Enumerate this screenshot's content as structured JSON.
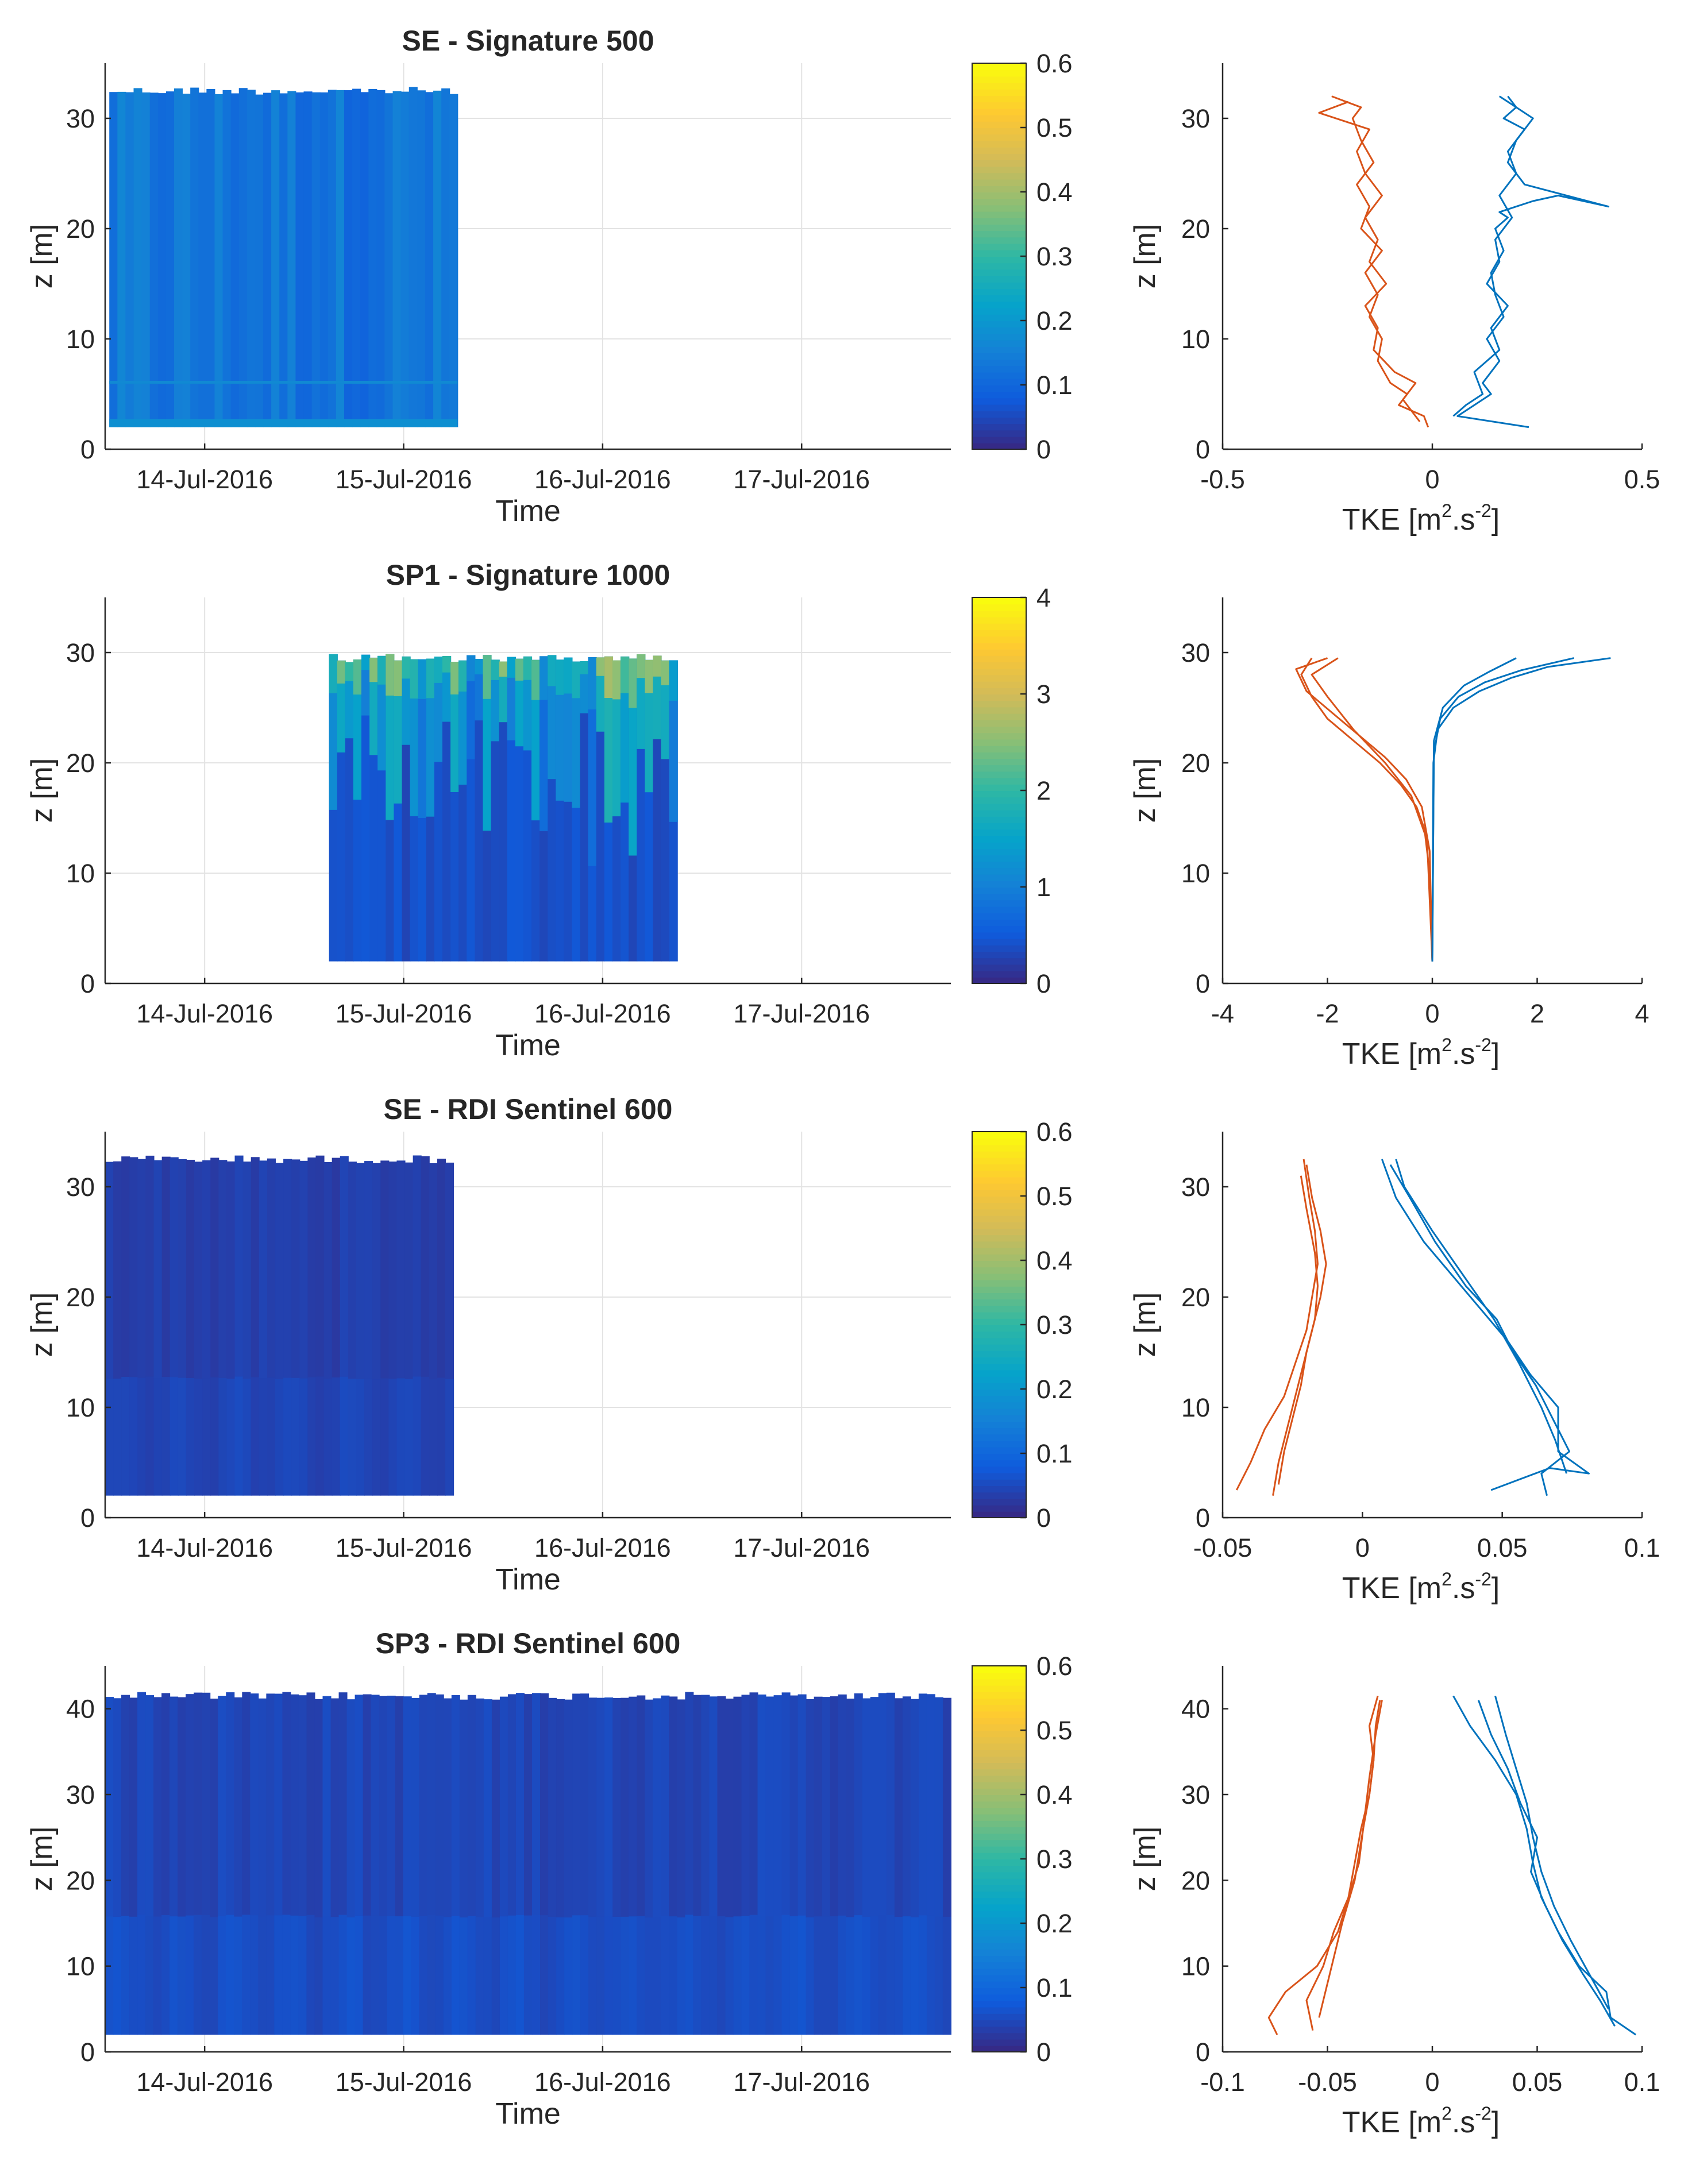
{
  "colors": {
    "orange_profile": "#D95319",
    "blue_profile": "#0072BD",
    "parula": [
      "#352A87",
      "#0F5CDD",
      "#1481D6",
      "#06A4CA",
      "#2EB7A4",
      "#87BF77",
      "#D1BB59",
      "#FEC832",
      "#F9FB0E"
    ]
  },
  "time_ticks": [
    "14-Jul-2016",
    "15-Jul-2016",
    "16-Jul-2016",
    "17-Jul-2016"
  ],
  "time_label": "Time",
  "z_label": "z [m]",
  "tke_label": {
    "main": "TKE [m",
    "sup1": "2",
    "mid": ".s",
    "sup2": "-2",
    "end": "]"
  },
  "chart_data": [
    {
      "type": "heatmap",
      "title": "SE - Signature 500",
      "xlabel": "Time",
      "ylabel": "z [m]",
      "xlim": [
        "13-Jul-2016 12:00",
        "17-Jul-2016 18:00"
      ],
      "x_ticks": [
        "14-Jul-2016",
        "15-Jul-2016",
        "16-Jul-2016",
        "17-Jul-2016"
      ],
      "ylim": [
        0,
        35
      ],
      "y_ticks": [
        0,
        10,
        20,
        30
      ],
      "data_extent": {
        "start": "13-Jul-2016 12:30",
        "end": "15-Jul-2016 06:30",
        "z_bottom": 2,
        "z_top": 32.5
      },
      "typical_value": 0.12,
      "colorbar": {
        "min": 0,
        "max": 0.6,
        "ticks": [
          0,
          0.1,
          0.2,
          0.3,
          0.4,
          0.5,
          0.6
        ]
      },
      "grid": true
    },
    {
      "type": "line",
      "xlabel": "TKE [m2.s-2]",
      "ylabel": "z [m]",
      "xlim": [
        -0.5,
        0.5
      ],
      "x_ticks": [
        -0.5,
        0,
        0.5
      ],
      "ylim": [
        0,
        35
      ],
      "y_ticks": [
        0,
        10,
        20,
        30
      ],
      "series": [
        {
          "color": "orange",
          "x": [
            -0.01,
            -0.02,
            -0.08,
            -0.06,
            -0.1,
            -0.13,
            -0.12,
            -0.15,
            -0.13,
            -0.16,
            -0.12,
            -0.17,
            -0.15,
            -0.18,
            -0.14,
            -0.17,
            -0.19,
            -0.17,
            -0.24
          ],
          "y": [
            2,
            3,
            4,
            5,
            6,
            8,
            10,
            12,
            14,
            16,
            18,
            20,
            22,
            24,
            26,
            28,
            30,
            31,
            32
          ]
        },
        {
          "color": "orange",
          "x": [
            -0.03,
            -0.05,
            -0.07,
            -0.04,
            -0.09,
            -0.14,
            -0.13,
            -0.16,
            -0.11,
            -0.15,
            -0.13,
            -0.16,
            -0.12,
            -0.16,
            -0.18,
            -0.15,
            -0.27,
            -0.2
          ],
          "y": [
            2.5,
            3.5,
            4.5,
            6,
            7,
            9,
            11,
            13,
            15,
            17,
            19,
            21,
            23,
            25,
            27,
            29,
            30.5,
            31.5
          ]
        },
        {
          "color": "blue",
          "x": [
            0.23,
            0.06,
            0.1,
            0.14,
            0.12,
            0.16,
            0.13,
            0.17,
            0.15,
            0.14,
            0.17,
            0.15,
            0.18,
            0.16,
            0.2,
            0.24,
            0.3,
            0.42,
            0.22,
            0.18,
            0.2,
            0.24,
            0.2,
            0.16
          ],
          "y": [
            2,
            3,
            4,
            5,
            6,
            8,
            10,
            12,
            14,
            16,
            18,
            20,
            21,
            21.5,
            22,
            22.5,
            23,
            22,
            24,
            26,
            28,
            30,
            31,
            32
          ]
        },
        {
          "color": "blue",
          "x": [
            0.05,
            0.08,
            0.12,
            0.1,
            0.16,
            0.14,
            0.18,
            0.13,
            0.16,
            0.15,
            0.19,
            0.16,
            0.2,
            0.18,
            0.22,
            0.17,
            0.2,
            0.18
          ],
          "y": [
            3,
            4,
            5,
            7,
            9,
            11,
            13,
            15,
            17,
            19,
            21,
            23,
            25,
            27,
            29,
            30,
            31,
            32
          ]
        }
      ],
      "grid": false
    },
    {
      "type": "heatmap",
      "title": "SP1 - Signature 1000",
      "xlabel": "Time",
      "ylabel": "z [m]",
      "xlim": [
        "13-Jul-2016 12:00",
        "17-Jul-2016 18:00"
      ],
      "x_ticks": [
        "14-Jul-2016",
        "15-Jul-2016",
        "16-Jul-2016",
        "17-Jul-2016"
      ],
      "ylim": [
        0,
        35
      ],
      "y_ticks": [
        0,
        10,
        20,
        30
      ],
      "data_extent": {
        "start": "14-Jul-2016 15:00",
        "end": "16-Jul-2016 09:00",
        "z_bottom": 2,
        "z_top": 29.5
      },
      "typical_value": 0.35,
      "colorbar": {
        "min": 0,
        "max": 4,
        "ticks": [
          0,
          1,
          2,
          3,
          4
        ]
      },
      "grid": true
    },
    {
      "type": "line",
      "xlabel": "TKE [m2.s-2]",
      "ylabel": "z [m]",
      "xlim": [
        -4,
        4
      ],
      "x_ticks": [
        -4,
        -2,
        0,
        2,
        4
      ],
      "ylim": [
        0,
        35
      ],
      "y_ticks": [
        0,
        10,
        20,
        30
      ],
      "series": [
        {
          "color": "orange",
          "x": [
            0,
            -0.05,
            -0.15,
            -0.3,
            -0.6,
            -1.0,
            -1.5,
            -2.0,
            -2.3,
            -2.5,
            -2.3
          ],
          "y": [
            2,
            10,
            14,
            16,
            18,
            20,
            22,
            24,
            26,
            28,
            29.5
          ]
        },
        {
          "color": "orange",
          "x": [
            0,
            -0.05,
            -0.2,
            -0.5,
            -0.9,
            -1.4,
            -1.9,
            -2.4,
            -2.6,
            -2.0
          ],
          "y": [
            2,
            12,
            16,
            18.5,
            20.5,
            22.5,
            24.5,
            26.5,
            28.5,
            29.5
          ]
        },
        {
          "color": "orange",
          "x": [
            0,
            -0.1,
            -0.4,
            -0.9,
            -1.5,
            -2.0,
            -2.3,
            -1.8
          ],
          "y": [
            2,
            13,
            17,
            20,
            23,
            26,
            28,
            29.5
          ]
        },
        {
          "color": "blue",
          "x": [
            0,
            0.02,
            0.1,
            0.4,
            0.9,
            1.5,
            2.2,
            3.4
          ],
          "y": [
            2,
            20,
            23,
            25,
            26.5,
            27.7,
            28.7,
            29.5
          ]
        },
        {
          "color": "blue",
          "x": [
            0,
            0.03,
            0.15,
            0.5,
            1.0,
            1.7,
            2.7
          ],
          "y": [
            2,
            21,
            24,
            26,
            27.3,
            28.4,
            29.5
          ]
        },
        {
          "color": "blue",
          "x": [
            0,
            0.03,
            0.2,
            0.6,
            1.1,
            1.6
          ],
          "y": [
            2,
            22,
            25,
            27,
            28.3,
            29.5
          ]
        }
      ],
      "grid": false
    },
    {
      "type": "heatmap",
      "title": "SE - RDI Sentinel 600",
      "xlabel": "Time",
      "ylabel": "z [m]",
      "xlim": [
        "13-Jul-2016 12:00",
        "17-Jul-2016 18:00"
      ],
      "x_ticks": [
        "14-Jul-2016",
        "15-Jul-2016",
        "16-Jul-2016",
        "17-Jul-2016"
      ],
      "ylim": [
        0,
        35
      ],
      "y_ticks": [
        0,
        10,
        20,
        30
      ],
      "data_extent": {
        "start": "13-Jul-2016 12:00",
        "end": "15-Jul-2016 06:00",
        "z_bottom": 2,
        "z_top": 32.5
      },
      "typical_value": 0.03,
      "colorbar": {
        "min": 0,
        "max": 0.6,
        "ticks": [
          0,
          0.1,
          0.2,
          0.3,
          0.4,
          0.5,
          0.6
        ]
      },
      "grid": true
    },
    {
      "type": "line",
      "xlabel": "TKE [m2.s-2]",
      "ylabel": "z [m]",
      "xlim": [
        -0.05,
        0.1
      ],
      "x_ticks": [
        -0.05,
        0,
        0.05,
        0.1
      ],
      "ylim": [
        0,
        35
      ],
      "y_ticks": [
        0,
        10,
        20,
        30
      ],
      "series": [
        {
          "color": "orange",
          "x": [
            -0.045,
            -0.04,
            -0.035,
            -0.028,
            -0.024,
            -0.02,
            -0.018,
            -0.016,
            -0.017,
            -0.019,
            -0.021
          ],
          "y": [
            2.5,
            5,
            8,
            11,
            14,
            17,
            20,
            23,
            26,
            29,
            32.5
          ]
        },
        {
          "color": "orange",
          "x": [
            -0.032,
            -0.03,
            -0.027,
            -0.024,
            -0.021,
            -0.018,
            -0.015,
            -0.013,
            -0.015,
            -0.018,
            -0.02
          ],
          "y": [
            2,
            5,
            8,
            11,
            14,
            17,
            20,
            23,
            26,
            29,
            32
          ]
        },
        {
          "color": "orange",
          "x": [
            -0.03,
            -0.028,
            -0.025,
            -0.022,
            -0.02,
            -0.017,
            -0.016,
            -0.017,
            -0.02,
            -0.022
          ],
          "y": [
            3,
            6,
            9,
            12,
            15,
            18,
            21,
            24,
            28,
            31
          ]
        },
        {
          "color": "blue",
          "x": [
            0.046,
            0.067,
            0.081,
            0.07,
            0.07,
            0.06,
            0.052,
            0.042,
            0.032,
            0.022,
            0.012,
            0.007
          ],
          "y": [
            2.5,
            4.5,
            4,
            6,
            10,
            13,
            16,
            19,
            22,
            25,
            29,
            32.5
          ]
        },
        {
          "color": "blue",
          "x": [
            0.066,
            0.064,
            0.074,
            0.068,
            0.062,
            0.054,
            0.048,
            0.037,
            0.026,
            0.017,
            0.01
          ],
          "y": [
            2,
            4,
            6,
            9,
            12,
            15,
            18,
            21,
            25,
            29,
            32
          ]
        },
        {
          "color": "blue",
          "x": [
            0.073,
            0.069,
            0.064,
            0.056,
            0.047,
            0.036,
            0.025,
            0.015,
            0.012
          ],
          "y": [
            4,
            7,
            10,
            14,
            18,
            22,
            26,
            30,
            32.5
          ]
        }
      ],
      "grid": false
    },
    {
      "type": "heatmap",
      "title": "SP3 - RDI Sentinel 600",
      "xlabel": "Time",
      "ylabel": "z [m]",
      "xlim": [
        "13-Jul-2016 12:00",
        "17-Jul-2016 18:00"
      ],
      "x_ticks": [
        "14-Jul-2016",
        "15-Jul-2016",
        "16-Jul-2016",
        "17-Jul-2016"
      ],
      "ylim": [
        0,
        45
      ],
      "y_ticks": [
        0,
        10,
        20,
        30,
        40
      ],
      "data_extent": {
        "start": "13-Jul-2016 12:00",
        "end": "17-Jul-2016 18:00",
        "z_bottom": 2,
        "z_top": 41.5
      },
      "typical_value": 0.04,
      "colorbar": {
        "min": 0,
        "max": 0.6,
        "ticks": [
          0,
          0.1,
          0.2,
          0.3,
          0.4,
          0.5,
          0.6
        ]
      },
      "grid": true
    },
    {
      "type": "line",
      "xlabel": "TKE [m2.s-2]",
      "ylabel": "z [m]",
      "xlim": [
        -0.1,
        0.1
      ],
      "x_ticks": [
        -0.1,
        -0.05,
        0,
        0.05,
        0.1
      ],
      "ylim": [
        0,
        45
      ],
      "y_ticks": [
        0,
        10,
        20,
        30,
        40
      ],
      "series": [
        {
          "color": "orange",
          "x": [
            -0.074,
            -0.078,
            -0.07,
            -0.055,
            -0.045,
            -0.04,
            -0.035,
            -0.033,
            -0.03,
            -0.028,
            -0.027,
            -0.025
          ],
          "y": [
            2,
            4,
            7,
            10,
            14,
            18,
            22,
            26,
            30,
            34,
            38,
            41
          ]
        },
        {
          "color": "orange",
          "x": [
            -0.057,
            -0.06,
            -0.052,
            -0.047,
            -0.04,
            -0.037,
            -0.034,
            -0.03,
            -0.028,
            -0.03,
            -0.026
          ],
          "y": [
            2.5,
            6,
            10,
            14,
            18,
            22,
            26,
            30,
            34,
            38,
            41.5
          ]
        },
        {
          "color": "orange",
          "x": [
            -0.054,
            -0.049,
            -0.043,
            -0.037,
            -0.033,
            -0.03,
            -0.027,
            -0.024
          ],
          "y": [
            4,
            9,
            15,
            20,
            26,
            32,
            37,
            41
          ]
        },
        {
          "color": "blue",
          "x": [
            0.097,
            0.085,
            0.083,
            0.07,
            0.06,
            0.052,
            0.048,
            0.045,
            0.04,
            0.03,
            0.018,
            0.01
          ],
          "y": [
            2,
            4,
            7,
            10,
            14,
            18,
            22,
            26,
            30,
            34,
            38,
            41.5
          ]
        },
        {
          "color": "blue",
          "x": [
            0.087,
            0.08,
            0.072,
            0.062,
            0.054,
            0.047,
            0.05,
            0.042,
            0.036,
            0.028,
            0.022
          ],
          "y": [
            3,
            6,
            9,
            13,
            17,
            21,
            25,
            29,
            33,
            37,
            41
          ]
        },
        {
          "color": "blue",
          "x": [
            0.084,
            0.075,
            0.066,
            0.058,
            0.052,
            0.048,
            0.045,
            0.04,
            0.035,
            0.03
          ],
          "y": [
            5,
            9,
            13,
            17,
            21,
            25,
            29,
            33,
            37,
            41.5
          ]
        }
      ],
      "grid": false
    }
  ]
}
